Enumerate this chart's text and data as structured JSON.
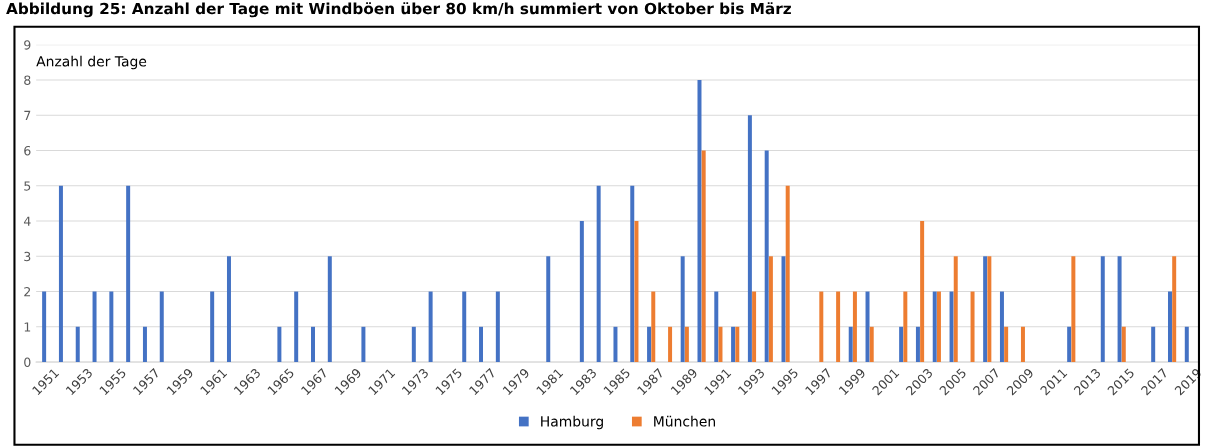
{
  "chart_data": {
    "type": "bar",
    "title": "Abbildung 25: Anzahl der Tage mit Windböen über 80 km/h summiert von Oktober bis März",
    "ylabel": "Anzahl der Tage",
    "categories": [
      "1951",
      null,
      "1953",
      null,
      "1955",
      null,
      "1957",
      null,
      "1959",
      null,
      "1961",
      null,
      "1963",
      null,
      "1965",
      null,
      "1967",
      null,
      "1969",
      null,
      "1971",
      null,
      "1973",
      null,
      "1975",
      null,
      "1977",
      null,
      "1979",
      null,
      "1981",
      null,
      "1983",
      null,
      "1985",
      null,
      "1987",
      null,
      "1989",
      null,
      "1991",
      null,
      "1993",
      null,
      "1995",
      null,
      "1997",
      null,
      "1999",
      null,
      "2001",
      null,
      "2003",
      null,
      "2005",
      null,
      "2007",
      null,
      "2009",
      null,
      "2011",
      null,
      "2013",
      null,
      "2015",
      null,
      "2017",
      null,
      "2019"
    ],
    "series": [
      {
        "name": "Hamburg",
        "color": "#4472c4",
        "values": [
          2,
          5,
          1,
          2,
          2,
          5,
          1,
          2,
          0,
          0,
          2,
          3,
          0,
          0,
          1,
          2,
          1,
          3,
          0,
          1,
          0,
          0,
          1,
          2,
          0,
          2,
          1,
          2,
          0,
          0,
          3,
          0,
          4,
          5,
          1,
          5,
          1,
          0,
          3,
          8,
          2,
          1,
          7,
          6,
          3,
          0,
          0,
          0,
          1,
          2,
          0,
          1,
          1,
          2,
          2,
          0,
          3,
          2,
          0,
          0,
          0,
          1,
          0,
          3,
          3,
          0,
          1,
          2,
          1
        ]
      },
      {
        "name": "München",
        "color": "#ed7d31",
        "values": [
          0,
          0,
          0,
          0,
          0,
          0,
          0,
          0,
          0,
          0,
          0,
          0,
          0,
          0,
          0,
          0,
          0,
          0,
          0,
          0,
          0,
          0,
          0,
          0,
          0,
          0,
          0,
          0,
          0,
          0,
          0,
          0,
          0,
          0,
          0,
          4,
          2,
          1,
          1,
          6,
          1,
          1,
          2,
          3,
          5,
          0,
          2,
          2,
          2,
          1,
          0,
          2,
          4,
          2,
          3,
          2,
          3,
          1,
          1,
          0,
          0,
          3,
          0,
          0,
          1,
          0,
          0,
          3,
          0
        ]
      }
    ],
    "ylim": [
      0,
      9
    ],
    "yticks": [
      0,
      1,
      2,
      3,
      4,
      5,
      6,
      7,
      8,
      9
    ],
    "grid": "y",
    "legend": "bottom"
  }
}
